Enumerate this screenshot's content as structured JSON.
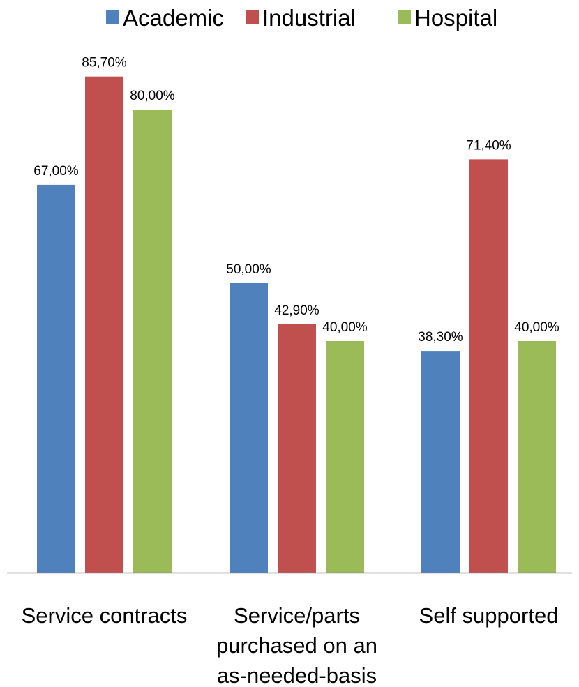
{
  "chart_data": {
    "type": "bar",
    "title": "",
    "xlabel": "",
    "ylabel": "",
    "ylim": [
      0,
      100
    ],
    "grid": false,
    "legend_position": "top",
    "categories": [
      "Service contracts",
      "Service/parts purchased on an as-needed-basis",
      "Self supported"
    ],
    "category_lines": [
      [
        "Service contracts"
      ],
      [
        "Service/parts",
        "purchased on an",
        "as-needed-basis"
      ],
      [
        "Self supported"
      ]
    ],
    "series": [
      {
        "name": "Academic",
        "color": "#4F81BD",
        "values": [
          67.0,
          50.0,
          38.3
        ],
        "labels": [
          "67,00%",
          "50,00%",
          "38,30%"
        ]
      },
      {
        "name": "Industrial",
        "color": "#C0504D",
        "values": [
          85.7,
          42.9,
          71.4
        ],
        "labels": [
          "85,70%",
          "42,90%",
          "71,40%"
        ]
      },
      {
        "name": "Hospital",
        "color": "#9BBB59",
        "values": [
          80.0,
          40.0,
          40.0
        ],
        "labels": [
          "80,00%",
          "40,00%",
          "40,00%"
        ]
      }
    ],
    "axis_color": "#888888"
  }
}
